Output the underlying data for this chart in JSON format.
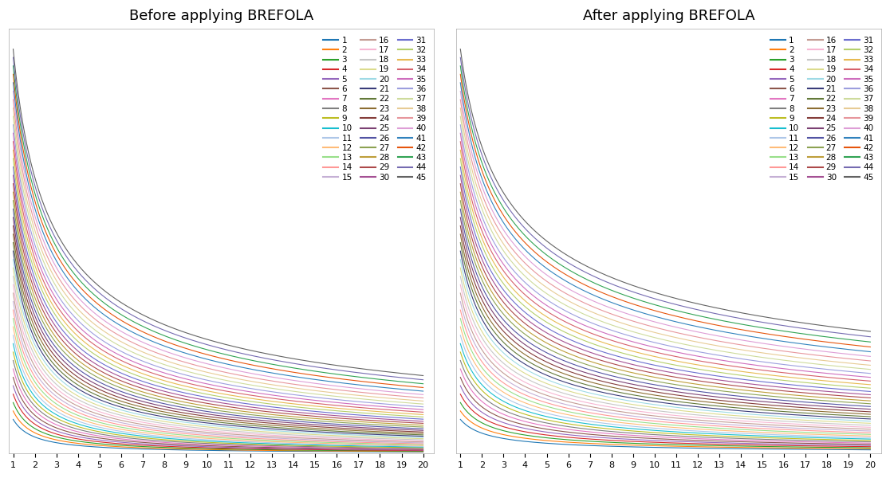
{
  "title_before": "Before applying BREFOLA",
  "title_after": "After applying BREFOLA",
  "n_series": 45,
  "x_ticks": [
    1,
    2,
    3,
    4,
    5,
    6,
    7,
    8,
    9,
    10,
    11,
    12,
    13,
    14,
    15,
    16,
    17,
    18,
    19,
    20
  ],
  "background_color": "#ffffff",
  "colors": [
    "#1f77b4",
    "#ff7f0e",
    "#2ca02c",
    "#d62728",
    "#9467bd",
    "#8c564b",
    "#e377c2",
    "#7f7f7f",
    "#bcbd22",
    "#17becf",
    "#aec7e8",
    "#ffbb78",
    "#98df8a",
    "#ff9896",
    "#c5b0d5",
    "#c49c94",
    "#f7b6d2",
    "#c7c7c7",
    "#dbdb8d",
    "#9edae5",
    "#393b79",
    "#637939",
    "#8c6d31",
    "#843c39",
    "#7b4173",
    "#5254a3",
    "#8ca252",
    "#bd9e39",
    "#ad494a",
    "#a55194",
    "#6b6ecf",
    "#b5cf6b",
    "#e7ba52",
    "#d6616b",
    "#ce6dbd",
    "#9c9ede",
    "#cedb9c",
    "#e7cb94",
    "#e7969c",
    "#de9ed6",
    "#3182bd",
    "#e6550d",
    "#31a354",
    "#756bb1",
    "#636363"
  ],
  "before_params": {
    "amp_min": 0.08,
    "amp_max": 0.95,
    "exp_min": 0.55,
    "exp_max": 1.05
  },
  "after_params": {
    "amp_min": 0.08,
    "amp_max": 0.95,
    "exp_min": 0.4,
    "exp_max": 0.75
  },
  "figsize": [
    11.16,
    6.0
  ],
  "dpi": 100,
  "linewidth": 0.8,
  "legend_fontsize": 7.5,
  "title_fontsize": 13
}
